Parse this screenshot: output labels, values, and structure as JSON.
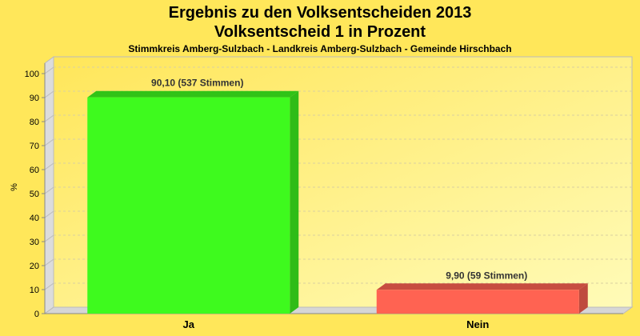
{
  "chart_data": {
    "type": "bar",
    "title": "Ergebnis zu den Volksentscheiden 2013",
    "title2": "Volksentscheid 1 in Prozent",
    "subtitle": "Stimmkreis Amberg-Sulzbach - Landkreis Amberg-Sulzbach - Gemeinde Hirschbach",
    "xlabel": "",
    "ylabel": "%",
    "ylim": [
      0,
      100
    ],
    "yticks": [
      0,
      10,
      20,
      30,
      40,
      50,
      60,
      70,
      80,
      90,
      100
    ],
    "grid": true,
    "three_d": true,
    "categories": [
      "Ja",
      "Nein"
    ],
    "values": [
      90.1,
      9.9
    ],
    "data_labels": [
      "90,10 (537 Stimmen)",
      "9,90 (59 Stimmen)"
    ],
    "colors": [
      "#3EFA1E",
      "#FF6352"
    ],
    "background": "#FFE75A"
  }
}
